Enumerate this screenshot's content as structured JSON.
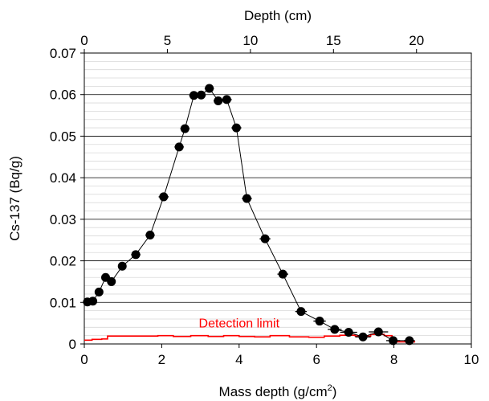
{
  "chart_data": {
    "type": "scatter",
    "xlabel_main": "Mass depth (g/cm",
    "xlabel_sup": "2",
    "xlabel_end": ")",
    "xlabel_top": "Depth (cm)",
    "ylabel": "Cs-137 (Bq/g)",
    "xlim": [
      0,
      10
    ],
    "ylim": [
      0,
      0.07
    ],
    "top_xlim": [
      0,
      23.3
    ],
    "x_ticks": [
      "0",
      "2",
      "4",
      "6",
      "8",
      "10"
    ],
    "y_ticks": [
      "0",
      "0.01",
      "0.02",
      "0.03",
      "0.04",
      "0.05",
      "0.06",
      "0.07"
    ],
    "top_x_ticks": [
      "0",
      "5",
      "10",
      "15",
      "20"
    ],
    "grid": "horizontal minor and major",
    "series": [
      {
        "name": "",
        "color": "#000000",
        "marker": "circle",
        "points": [
          {
            "x": 0.08,
            "y": 0.0101,
            "xerr": 0.08
          },
          {
            "x": 0.22,
            "y": 0.0103,
            "xerr": 0.08
          },
          {
            "x": 0.38,
            "y": 0.0125,
            "xerr": 0.08
          },
          {
            "x": 0.55,
            "y": 0.016,
            "xerr": 0.09
          },
          {
            "x": 0.7,
            "y": 0.015,
            "xerr": 0.09
          },
          {
            "x": 0.98,
            "y": 0.0187,
            "xerr": 0.1
          },
          {
            "x": 1.33,
            "y": 0.0215,
            "xerr": 0.12
          },
          {
            "x": 1.7,
            "y": 0.0262,
            "xerr": 0.12
          },
          {
            "x": 2.05,
            "y": 0.0354,
            "xerr": 0.13
          },
          {
            "x": 2.45,
            "y": 0.0474,
            "xerr": 0.12
          },
          {
            "x": 2.6,
            "y": 0.0518,
            "xerr": 0.12
          },
          {
            "x": 2.83,
            "y": 0.0598,
            "xerr": 0.12
          },
          {
            "x": 3.02,
            "y": 0.0599,
            "xerr": 0.12
          },
          {
            "x": 3.23,
            "y": 0.0615,
            "xerr": 0.12
          },
          {
            "x": 3.46,
            "y": 0.0585,
            "xerr": 0.12
          },
          {
            "x": 3.68,
            "y": 0.0588,
            "xerr": 0.13
          },
          {
            "x": 3.93,
            "y": 0.052,
            "xerr": 0.13
          },
          {
            "x": 4.2,
            "y": 0.035,
            "xerr": 0.13
          },
          {
            "x": 4.67,
            "y": 0.0253,
            "xerr": 0.14
          },
          {
            "x": 5.13,
            "y": 0.0168,
            "xerr": 0.14
          },
          {
            "x": 5.6,
            "y": 0.0078,
            "xerr": 0.15
          },
          {
            "x": 6.08,
            "y": 0.0055,
            "xerr": 0.16
          },
          {
            "x": 6.47,
            "y": 0.0035,
            "xerr": 0.18
          },
          {
            "x": 6.83,
            "y": 0.0028,
            "xerr": 0.22
          },
          {
            "x": 7.2,
            "y": 0.0017,
            "xerr": 0.2
          },
          {
            "x": 7.6,
            "y": 0.0029,
            "xerr": 0.25
          },
          {
            "x": 7.98,
            "y": 0.0008,
            "xerr": 0.18
          },
          {
            "x": 8.4,
            "y": 0.0008,
            "xerr": 0.14
          }
        ]
      }
    ],
    "detection_limit": {
      "label": "Detection limit",
      "color": "#ff0000",
      "steps": [
        [
          0,
          0.0009
        ],
        [
          0.2,
          0.0011
        ],
        [
          0.45,
          0.0012
        ],
        [
          0.6,
          0.0019
        ],
        [
          1.0,
          0.0019
        ],
        [
          1.4,
          0.0019
        ],
        [
          1.9,
          0.002
        ],
        [
          2.3,
          0.0018
        ],
        [
          2.75,
          0.002
        ],
        [
          3.2,
          0.0018
        ],
        [
          3.6,
          0.002
        ],
        [
          4.0,
          0.0018
        ],
        [
          4.4,
          0.0017
        ],
        [
          4.8,
          0.002
        ],
        [
          5.3,
          0.0017
        ],
        [
          5.8,
          0.0016
        ],
        [
          6.2,
          0.0019
        ],
        [
          6.6,
          0.0021
        ],
        [
          7.0,
          0.0019
        ],
        [
          7.4,
          0.0023
        ],
        [
          7.75,
          0.002
        ],
        [
          7.95,
          0.0005
        ],
        [
          8.2,
          0.0005
        ],
        [
          8.5,
          0.0005
        ]
      ],
      "label_pos": [
        4.0,
        0.0045
      ]
    }
  }
}
